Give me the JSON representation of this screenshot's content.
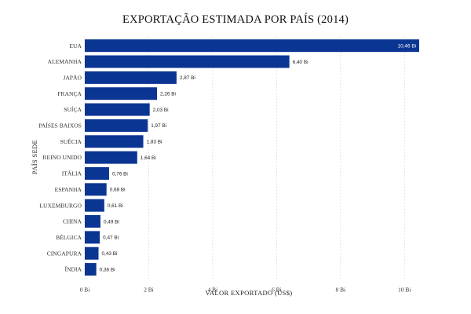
{
  "chart_data": {
    "type": "bar",
    "orientation": "horizontal",
    "title": "EXPORTAÇÃO ESTIMADA POR PAÍS (2014)",
    "xlabel": "VALOR EXPORTADO (US$)",
    "ylabel": "PAÍS SEDE",
    "bar_color": "#0b3592",
    "grid": "vertical dotted",
    "xlim": [
      0,
      10.46
    ],
    "x_ticks": [
      0,
      2,
      4,
      6,
      8,
      10
    ],
    "x_tick_labels": [
      "0 Bi",
      "2 Bi",
      "4 Bi",
      "6 Bi",
      "8 Bi",
      "10 Bi"
    ],
    "categories": [
      "EUA",
      "ALEMANHA",
      "JAPÃO",
      "FRANÇA",
      "SUÍÇA",
      "PAÍSES BAIXOS",
      "SUÉCIA",
      "REINO UNIDO",
      "ITÁLIA",
      "ESPANHA",
      "LUXEMBURGO",
      "CHINA",
      "BÉLGICA",
      "CINGAPURA",
      "ÍNDIA"
    ],
    "values": [
      10.46,
      6.4,
      2.87,
      2.26,
      2.03,
      1.97,
      1.83,
      1.64,
      0.76,
      0.68,
      0.61,
      0.49,
      0.47,
      0.43,
      0.36
    ],
    "value_labels": [
      "10,46 Bi",
      "6,40 Bi",
      "2,87 Bi",
      "2,26 Bi",
      "2,03 Bi",
      "1,97 Bi",
      "1,83 Bi",
      "1,64 Bi",
      "0,76 Bi",
      "0,68 Bi",
      "0,61 Bi",
      "0,49 Bi",
      "0,47 Bi",
      "0,43 Bi",
      "0,36 Bi"
    ]
  }
}
